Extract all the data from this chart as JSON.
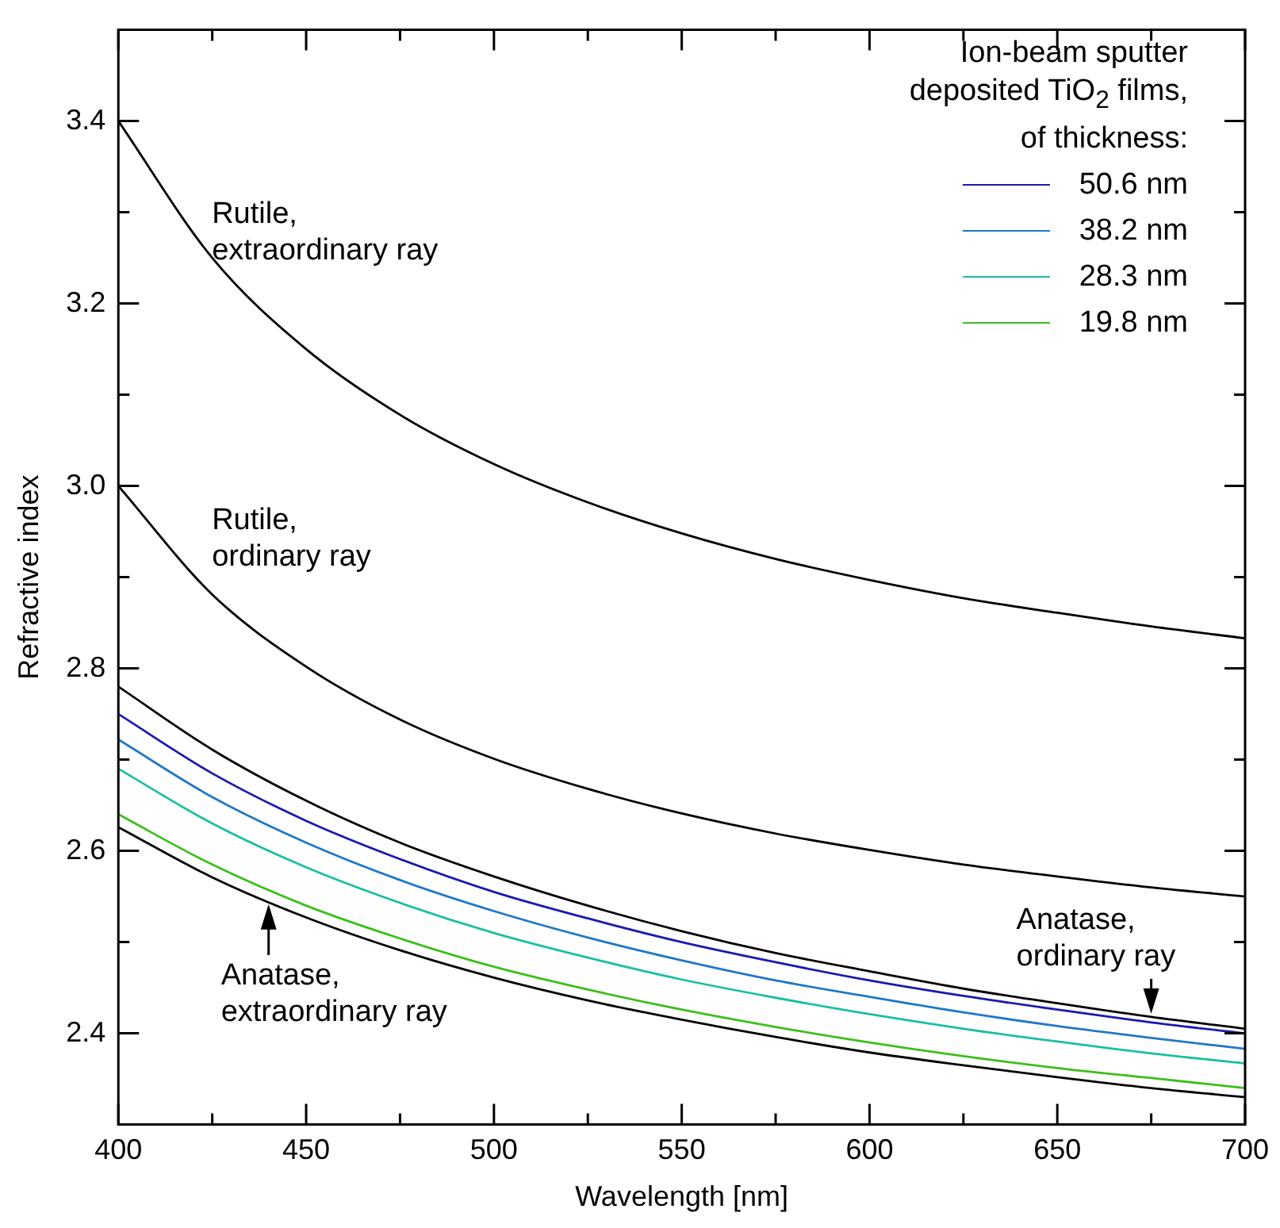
{
  "chart_data": {
    "type": "line",
    "xlabel": "Wavelength [nm]",
    "ylabel": "Refractive index",
    "legend_title": "Ion-beam sputter deposited TiO$_{2}$ films, of thickness:",
    "legend": "top right",
    "grid": false,
    "marker": "none",
    "line_style": "solid",
    "x": [
      400,
      425,
      450,
      475,
      500,
      525,
      550,
      575,
      600,
      625,
      650,
      675,
      700
    ],
    "xlim": [
      400,
      700
    ],
    "xticks": [
      400,
      {
        "value": 425,
        "label": null
      },
      450,
      {
        "value": 475,
        "label": null
      },
      500,
      {
        "value": 525,
        "label": null
      },
      550,
      {
        "value": 575,
        "label": null
      },
      600,
      {
        "value": 625,
        "label": null
      },
      650,
      {
        "value": 675,
        "label": null
      },
      700
    ],
    "ylim": [
      2.3,
      3.5
    ],
    "yticks": [
      {
        "value": 2.3,
        "label": null
      },
      {
        "value": 2.4,
        "label": "2.4"
      },
      {
        "value": 2.5,
        "label": null
      },
      {
        "value": 2.6,
        "label": "2.6"
      },
      {
        "value": 2.7,
        "label": null
      },
      {
        "value": 2.8,
        "label": "2.8"
      },
      {
        "value": 2.9,
        "label": null
      },
      {
        "value": 3.0,
        "label": "3.0"
      },
      {
        "value": 3.1,
        "label": null
      },
      {
        "value": 3.2,
        "label": "3.2"
      },
      {
        "value": 3.3,
        "label": null
      },
      {
        "value": 3.4,
        "label": "3.4"
      },
      {
        "value": 3.5,
        "label": null
      }
    ],
    "series": [
      {
        "color": "#000000",
        "values": [
          3.4,
          3.25,
          3.15,
          3.078,
          3.024,
          2.982,
          2.948,
          2.92,
          2.897,
          2.877,
          2.861,
          2.846,
          2.833
        ]
      },
      {
        "color": "#000000",
        "values": [
          3.0,
          2.881,
          2.802,
          2.744,
          2.701,
          2.668,
          2.641,
          2.619,
          2.601,
          2.585,
          2.572,
          2.56,
          2.55
        ]
      },
      {
        "color": "#000000",
        "values": [
          2.78,
          2.711,
          2.655,
          2.609,
          2.572,
          2.54,
          2.512,
          2.488,
          2.468,
          2.449,
          2.433,
          2.418,
          2.405
        ]
      },
      {
        "name": "50.6 nm",
        "color": "#1a1ab0",
        "values": [
          2.75,
          2.685,
          2.633,
          2.591,
          2.555,
          2.526,
          2.5,
          2.478,
          2.458,
          2.441,
          2.426,
          2.412,
          2.4
        ]
      },
      {
        "name": "38.2 nm",
        "color": "#1f78c8",
        "values": [
          2.722,
          2.659,
          2.609,
          2.568,
          2.534,
          2.505,
          2.48,
          2.458,
          2.44,
          2.423,
          2.408,
          2.395,
          2.383
        ]
      },
      {
        "name": "28.3 nm",
        "color": "#1abfa5",
        "values": [
          2.69,
          2.63,
          2.582,
          2.543,
          2.51,
          2.483,
          2.459,
          2.439,
          2.421,
          2.405,
          2.391,
          2.378,
          2.367
        ]
      },
      {
        "name": "19.8 nm",
        "color": "#3cbf1a",
        "values": [
          2.64,
          2.585,
          2.54,
          2.504,
          2.473,
          2.448,
          2.426,
          2.407,
          2.39,
          2.375,
          2.362,
          2.351,
          2.34
        ]
      },
      {
        "color": "#000000",
        "values": [
          2.626,
          2.571,
          2.527,
          2.491,
          2.461,
          2.436,
          2.415,
          2.396,
          2.379,
          2.365,
          2.352,
          2.34,
          2.33
        ]
      }
    ],
    "annotations": [
      "Rutile, extraordinary ray",
      "Rutile, ordinary ray",
      {
        "text": "Anatase, extraordinary ray",
        "x": 440,
        "y": 2.545
      },
      {
        "text": "Anatase, ordinary ray",
        "x": 675,
        "y": 2.418
      }
    ]
  }
}
